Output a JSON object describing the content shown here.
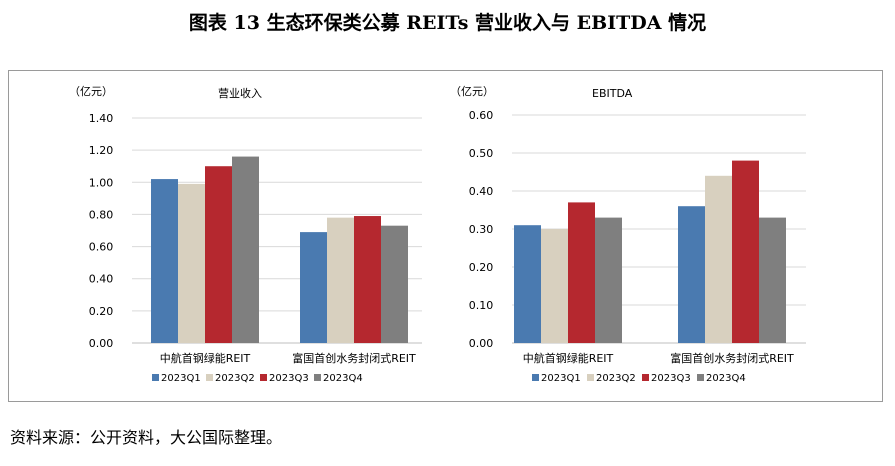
{
  "figure_title": "图表 13 生态环保类公募 REITs 营业收入与 EBITDA 情况",
  "source_note": "资料来源：公开资料，大公国际整理。",
  "colors": {
    "2023Q1": "#4a7ab0",
    "2023Q2": "#d8d0bf",
    "2023Q3": "#b5282f",
    "2023Q4": "#7f7f7f",
    "frame": "#9a9a9a",
    "grid": "#d9d9d9"
  },
  "chart_data": [
    {
      "type": "bar",
      "title": "营业收入",
      "unit_label": "（亿元）",
      "categories": [
        "中航首钢绿能REIT",
        "富国首创水务封闭式REIT"
      ],
      "series": [
        {
          "name": "2023Q1",
          "values": [
            1.02,
            0.69
          ]
        },
        {
          "name": "2023Q2",
          "values": [
            0.99,
            0.78
          ]
        },
        {
          "name": "2023Q3",
          "values": [
            1.1,
            0.79
          ]
        },
        {
          "name": "2023Q4",
          "values": [
            1.16,
            0.73
          ]
        }
      ],
      "yticks": [
        "0.00",
        "0.20",
        "0.40",
        "0.60",
        "0.80",
        "1.00",
        "1.20",
        "1.40"
      ],
      "ylim": [
        0,
        1.4
      ],
      "grid": true,
      "legend": "bottom"
    },
    {
      "type": "bar",
      "title": "EBITDA",
      "unit_label": "（亿元）",
      "categories": [
        "中航首钢绿能REIT",
        "富国首创水务封闭式REIT"
      ],
      "series": [
        {
          "name": "2023Q1",
          "values": [
            0.31,
            0.36
          ]
        },
        {
          "name": "2023Q2",
          "values": [
            0.3,
            0.44
          ]
        },
        {
          "name": "2023Q3",
          "values": [
            0.37,
            0.48
          ]
        },
        {
          "name": "2023Q4",
          "values": [
            0.33,
            0.33
          ]
        }
      ],
      "yticks": [
        "0.00",
        "0.10",
        "0.20",
        "0.30",
        "0.40",
        "0.50",
        "0.60"
      ],
      "ylim": [
        0,
        0.6
      ],
      "grid": true,
      "legend": "bottom"
    }
  ]
}
